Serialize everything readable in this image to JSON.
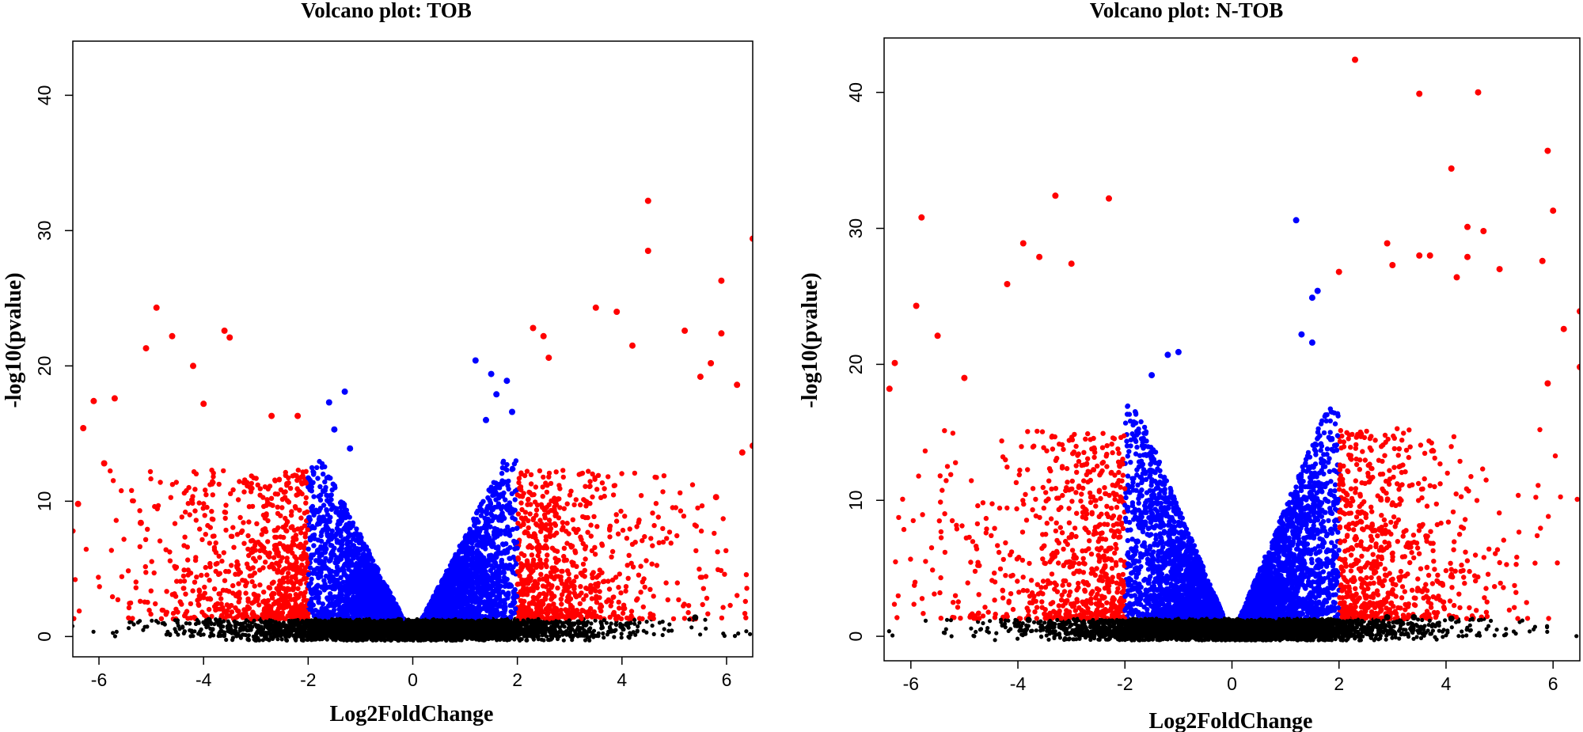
{
  "chart_data": [
    {
      "type": "scatter",
      "title": "Volcano plot: TOB",
      "xlabel": "Log2FoldChange",
      "ylabel": "-log10(pvalue)",
      "xlim": [
        -6.5,
        6.5
      ],
      "ylim": [
        -1.5,
        44
      ],
      "xticks": [
        -6,
        -4,
        -2,
        0,
        2,
        4,
        6
      ],
      "yticks": [
        0,
        10,
        20,
        30,
        40
      ],
      "grid": false,
      "legend": "none",
      "colors": {
        "not_significant": "#000000",
        "moderate": "#0000ff",
        "high": "#ff0000"
      },
      "thresholds": {
        "log2fc": [
          1,
          2
        ],
        "neg_log10_p": 1.3
      },
      "series": [
        {
          "color": "high",
          "points": [
            [
              -6.3,
              15.4
            ],
            [
              -6.1,
              17.4
            ],
            [
              -5.9,
              12.8
            ],
            [
              -5.7,
              17.6
            ],
            [
              -5.1,
              21.3
            ],
            [
              -4.9,
              24.3
            ],
            [
              -4.6,
              22.2
            ],
            [
              -4.2,
              20.0
            ],
            [
              -4.0,
              17.2
            ],
            [
              -3.6,
              22.6
            ],
            [
              -3.5,
              22.1
            ],
            [
              -2.7,
              16.3
            ],
            [
              -2.2,
              16.3
            ],
            [
              2.3,
              22.8
            ],
            [
              2.5,
              22.2
            ],
            [
              2.6,
              20.6
            ],
            [
              3.5,
              24.3
            ],
            [
              3.9,
              24.0
            ],
            [
              4.2,
              21.5
            ],
            [
              4.5,
              32.2
            ],
            [
              4.5,
              28.5
            ],
            [
              5.2,
              22.6
            ],
            [
              5.5,
              19.2
            ],
            [
              5.7,
              20.2
            ],
            [
              5.9,
              26.3
            ],
            [
              5.9,
              22.4
            ],
            [
              6.2,
              18.6
            ],
            [
              6.5,
              29.4
            ],
            [
              6.5,
              14.1
            ],
            [
              6.3,
              13.6
            ],
            [
              5.8,
              10.3
            ],
            [
              -6.4,
              9.8
            ],
            [
              -5.2,
              8.4
            ]
          ]
        },
        {
          "color": "moderate",
          "points": [
            [
              -1.6,
              17.3
            ],
            [
              -1.3,
              18.1
            ],
            [
              -1.5,
              15.3
            ],
            [
              -1.2,
              13.9
            ],
            [
              1.2,
              20.4
            ],
            [
              1.5,
              19.4
            ],
            [
              1.8,
              18.9
            ],
            [
              1.6,
              17.9
            ],
            [
              1.9,
              16.6
            ],
            [
              1.4,
              16.0
            ]
          ]
        },
        {
          "color": "not_significant",
          "points": [
            [
              -3.9,
              1.2
            ],
            [
              -3.7,
              1.0
            ],
            [
              -2.8,
              0.8
            ],
            [
              3.3,
              0.9
            ],
            [
              4.1,
              0.9
            ],
            [
              5.4,
              1.4
            ]
          ]
        }
      ]
    },
    {
      "type": "scatter",
      "title": "Volcano plot: N-TOB",
      "xlabel": "Log2FoldChange",
      "ylabel": "-log10(pvalue)",
      "xlim": [
        -6.5,
        6.5
      ],
      "ylim": [
        -1.8,
        44
      ],
      "xticks": [
        -6,
        -4,
        -2,
        0,
        2,
        4,
        6
      ],
      "yticks": [
        0,
        10,
        20,
        30,
        40
      ],
      "grid": false,
      "legend": "none",
      "colors": {
        "not_significant": "#000000",
        "moderate": "#0000ff",
        "high": "#ff0000"
      },
      "thresholds": {
        "log2fc": [
          1,
          2
        ],
        "neg_log10_p": 1.3
      },
      "series": [
        {
          "color": "high",
          "points": [
            [
              -5.8,
              30.8
            ],
            [
              -5.9,
              24.3
            ],
            [
              -6.3,
              20.1
            ],
            [
              -6.4,
              18.2
            ],
            [
              -3.9,
              28.9
            ],
            [
              -3.6,
              27.9
            ],
            [
              -3.3,
              32.4
            ],
            [
              -2.3,
              32.2
            ],
            [
              -3.0,
              27.4
            ],
            [
              -4.2,
              25.9
            ],
            [
              -5.5,
              22.1
            ],
            [
              -5.0,
              19.0
            ],
            [
              2.3,
              42.4
            ],
            [
              3.5,
              39.9
            ],
            [
              4.6,
              40.0
            ],
            [
              4.1,
              34.4
            ],
            [
              4.4,
              30.1
            ],
            [
              4.7,
              29.8
            ],
            [
              5.9,
              35.7
            ],
            [
              6.0,
              31.3
            ],
            [
              5.8,
              27.6
            ],
            [
              6.2,
              22.6
            ],
            [
              2.0,
              26.8
            ],
            [
              2.9,
              28.9
            ],
            [
              3.5,
              28.0
            ],
            [
              3.7,
              28.0
            ],
            [
              4.2,
              26.4
            ],
            [
              4.4,
              27.9
            ],
            [
              5.0,
              27.0
            ],
            [
              3.0,
              27.3
            ],
            [
              6.5,
              23.9
            ],
            [
              6.5,
              19.8
            ],
            [
              5.9,
              18.6
            ]
          ]
        },
        {
          "color": "moderate",
          "points": [
            [
              1.2,
              30.6
            ],
            [
              1.5,
              24.9
            ],
            [
              1.6,
              25.4
            ],
            [
              -1.0,
              20.9
            ],
            [
              -1.2,
              20.7
            ],
            [
              -1.5,
              19.2
            ],
            [
              1.3,
              22.2
            ],
            [
              1.5,
              21.6
            ]
          ]
        },
        {
          "color": "not_significant",
          "points": [
            [
              -3.8,
              1.2
            ],
            [
              -3.4,
              1.0
            ],
            [
              3.4,
              1.4
            ],
            [
              4.1,
              1.3
            ],
            [
              2.9,
              1.4
            ]
          ]
        }
      ]
    }
  ]
}
